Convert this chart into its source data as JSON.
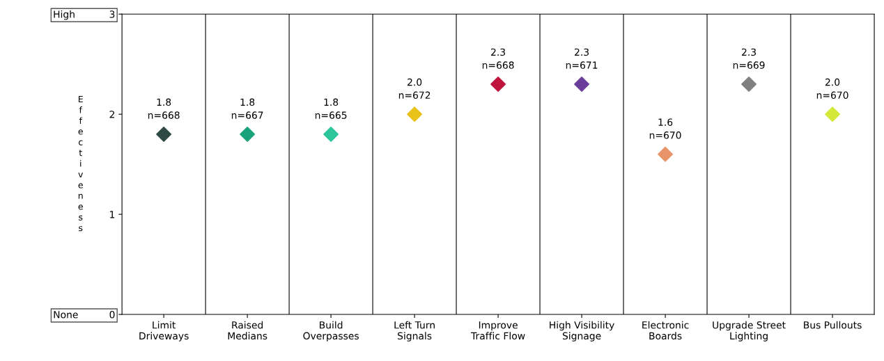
{
  "chart_data": {
    "type": "scatter",
    "ylabel": "Effectiveness",
    "categories": [
      "Limit\nDriveways",
      "Raised\nMedians",
      "Build\nOverpasses",
      "Left Turn\nSignals",
      "Improve\nTraffic Flow",
      "High Visibility\nSignage",
      "Electronic\nBoards",
      "Upgrade Street\nLighting",
      "Bus Pullouts"
    ],
    "values": [
      1.8,
      1.8,
      1.8,
      2.0,
      2.3,
      2.3,
      1.6,
      2.3,
      2.0
    ],
    "colors": [
      "#2f4a44",
      "#1aa37a",
      "#2dc59a",
      "#e8c21a",
      "#c0143c",
      "#6a3d9a",
      "#e8946a",
      "#808080",
      "#d4e83a"
    ],
    "value_labels": [
      "1.8\nn=668",
      "1.8\nn=667",
      "1.8\nn=665",
      "2.0\nn=672",
      "2.3\nn=668",
      "2.3\nn=671",
      "1.6\nn=670",
      "2.3\nn=669",
      "2.0\nn=670"
    ],
    "ylim": [
      0,
      3
    ],
    "yticks": [
      {
        "value": 0,
        "label": "None          0"
      },
      1,
      2,
      {
        "value": 3,
        "label": "High           3"
      }
    ],
    "marker": "diamond",
    "grid": "x",
    "legend": false
  }
}
